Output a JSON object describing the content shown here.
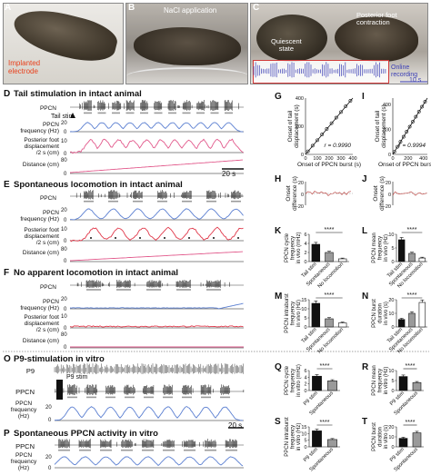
{
  "panels": {
    "A": {
      "letter": "A",
      "label": "Implanted\nelectrode"
    },
    "B": {
      "letter": "B",
      "label": "NaCl application"
    },
    "C": {
      "letter": "C",
      "label_quiescent": "Quiescent\nstate",
      "label_posterior": "Posterior foot\ncontraction",
      "label_online": "Online\nrecording",
      "label_scale": "10 s"
    },
    "D": {
      "letter": "D",
      "title": "Tail stimulation in intact animal",
      "annot": "Tail stim",
      "scale": "20 s",
      "rows": [
        "PPCN",
        "PPCN\nfrequency (Hz)",
        "Posterior foot\ndisplacement\n/2 s (cm)",
        "Distance (cm)"
      ],
      "ticks": [
        "20",
        "0",
        "10",
        "0",
        "80",
        "0"
      ]
    },
    "E": {
      "letter": "E",
      "title": "Spontaneous locomotion in intact animal",
      "rows": [
        "PPCN",
        "PPCN\nfrequency (Hz)",
        "Posterior foot\ndisplacement\n/2 s (cm)",
        "Distance (cm)"
      ],
      "ticks": [
        "20",
        "0",
        "10",
        "0",
        "80",
        "0"
      ]
    },
    "F": {
      "letter": "F",
      "title": "No apparent locomotion in intact animal",
      "rows": [
        "PPCN",
        "PPCN\nfrequency (Hz)",
        "Posterior foot\ndisplacement\n/2 s (cm)",
        "Distance (cm)"
      ],
      "ticks": [
        "20",
        "0",
        "10",
        "0",
        "80",
        "0"
      ]
    },
    "G": {
      "letter": "G",
      "xlabel": "Onset of PPCN burst (s)",
      "ylabel": "Onset of tail\ndisplacement (s)",
      "r": "r = 0.9990",
      "xticks": [
        "0",
        "100",
        "200",
        "300",
        "400"
      ],
      "yticks": [
        "0",
        "200",
        "400"
      ]
    },
    "H": {
      "letter": "H",
      "ylabel": "Onset\ndifference (s)",
      "yticks": [
        "20",
        "0",
        "-20"
      ]
    },
    "I": {
      "letter": "I",
      "xlabel": "Onset of PPCN burst (s)",
      "ylabel": "Onset of tail\ndisplacement (s)",
      "r": "r = 0.9994",
      "xticks": [
        "0",
        "200",
        "400"
      ],
      "yticks": [
        "0",
        "200",
        "400"
      ]
    },
    "J": {
      "letter": "J",
      "ylabel": "Onset\ndifference (s)",
      "yticks": [
        "20",
        "0",
        "-20"
      ]
    },
    "K": {
      "letter": "K",
      "ylabel": "PPCN cycle\nfrequency\nin vivo (mHz)",
      "yticks": [
        "0",
        "2",
        "4",
        "6"
      ],
      "stars": "****",
      "categories": [
        "Tail stim",
        "Spontaneous",
        "No locomotion"
      ]
    },
    "L": {
      "letter": "L",
      "ylabel": "PPCN mean\nfrequency\nin vivo (Hz)",
      "yticks": [
        "0",
        "5",
        "10"
      ],
      "stars": "****",
      "categories": [
        "Tail stim",
        "Spontaneous",
        "No locomotion"
      ]
    },
    "M": {
      "letter": "M",
      "ylabel": "PPCN intraburst\nfrequency\nin vivo (Hz)",
      "yticks": [
        "0",
        "5",
        "10",
        "15"
      ],
      "stars": "****",
      "categories": [
        "Tail stim",
        "Spontaneous",
        "No locomotion"
      ]
    },
    "N": {
      "letter": "N",
      "ylabel": "PPCN burst\nduration\nin vivo (s)",
      "yticks": [
        "0",
        "10",
        "20"
      ],
      "stars": "****",
      "categories": [
        "Tail stim",
        "Spontaneous",
        "No locomotion"
      ]
    },
    "O": {
      "letter": "O",
      "title": "P9-stimulation in vitro",
      "annot": "P9 stim",
      "scale": "20 s",
      "rows": [
        "P9",
        "PPCN",
        "PPCN\nfrequency\n(Hz)"
      ],
      "ticks": [
        "20",
        "0"
      ]
    },
    "P": {
      "letter": "P",
      "title": "Spontaneous PPCN activity in vitro",
      "rows": [
        "PPCN",
        "PPCN\nfrequency\n(Hz)"
      ],
      "ticks": [
        "20",
        "0"
      ]
    },
    "Q": {
      "letter": "Q",
      "ylabel": "PPCN cycle\nfrequency\nin vitro (mHz)",
      "yticks": [
        "0",
        "2",
        "4",
        "6"
      ],
      "stars": "****",
      "categories": [
        "P9 stim",
        "Spontaneous"
      ]
    },
    "R": {
      "letter": "R",
      "ylabel": "PPCN mean\nfrequency\nin vitro (Hz)",
      "yticks": [
        "0",
        "5",
        "10"
      ],
      "stars": "****",
      "categories": [
        "P9 stim",
        "Spontaneous"
      ]
    },
    "S": {
      "letter": "S",
      "ylabel": "PPCN intraburst\nfrequency\nin vitro (Hz)",
      "yticks": [
        "0",
        "5",
        "10",
        "15"
      ],
      "stars": "****",
      "categories": [
        "P9 stim",
        "Spontaneous"
      ]
    },
    "T": {
      "letter": "T",
      "ylabel": "PPCN burst\nduration\nin vitro (s)",
      "yticks": [
        "0",
        "10",
        "20"
      ],
      "stars": "****",
      "categories": [
        "P9 stim",
        "Spontaneous"
      ]
    }
  },
  "colors": {
    "trace": "#111111",
    "blue": "#5b7fd1",
    "red": "#e0384a",
    "pink": "#e25a8c",
    "gray": "#9a9a9a",
    "white": "#ffffff",
    "label_red": "#e8401c"
  },
  "chart_data": [
    {
      "panel": "K",
      "type": "bar",
      "categories": [
        "Tail stim",
        "Spontaneous",
        "No locomotion"
      ],
      "values": [
        3.8,
        2.0,
        0.6
      ],
      "ylim": [
        0,
        6
      ]
    },
    {
      "panel": "L",
      "type": "bar",
      "categories": [
        "Tail stim",
        "Spontaneous",
        "No locomotion"
      ],
      "values": [
        8.0,
        3.0,
        1.3
      ],
      "ylim": [
        0,
        10
      ]
    },
    {
      "panel": "M",
      "type": "bar",
      "categories": [
        "Tail stim",
        "Spontaneous",
        "No locomotion"
      ],
      "values": [
        13.0,
        4.5,
        2.2
      ],
      "ylim": [
        0,
        15
      ]
    },
    {
      "panel": "N",
      "type": "bar",
      "categories": [
        "Tail stim",
        "Spontaneous",
        "No locomotion"
      ],
      "values": [
        5.5,
        10.0,
        18.0
      ],
      "ylim": [
        0,
        20
      ]
    },
    {
      "panel": "Q",
      "type": "bar",
      "categories": [
        "P9 stim",
        "Spontaneous"
      ],
      "values": [
        4.3,
        2.9
      ],
      "ylim": [
        0,
        6
      ]
    },
    {
      "panel": "R",
      "type": "bar",
      "categories": [
        "P9 stim",
        "Spontaneous"
      ],
      "values": [
        7.0,
        4.0
      ],
      "ylim": [
        0,
        10
      ]
    },
    {
      "panel": "S",
      "type": "bar",
      "categories": [
        "P9 stim",
        "Spontaneous"
      ],
      "values": [
        12.0,
        5.5
      ],
      "ylim": [
        0,
        15
      ]
    },
    {
      "panel": "T",
      "type": "bar",
      "categories": [
        "P9 stim",
        "Spontaneous"
      ],
      "values": [
        8.5,
        14.0
      ],
      "ylim": [
        0,
        20
      ]
    },
    {
      "panel": "G",
      "type": "scatter",
      "x": [
        20,
        60,
        100,
        140,
        180,
        220,
        260,
        300,
        340,
        380
      ],
      "y": [
        22,
        62,
        101,
        142,
        181,
        222,
        261,
        301,
        342,
        381
      ],
      "xlim": [
        0,
        400
      ],
      "ylim": [
        0,
        400
      ]
    },
    {
      "panel": "I",
      "type": "scatter",
      "x": [
        20,
        60,
        100,
        140,
        180,
        220,
        260,
        300,
        340,
        380,
        420
      ],
      "y": [
        21,
        61,
        101,
        141,
        181,
        221,
        261,
        301,
        341,
        381,
        421
      ],
      "xlim": [
        0,
        450
      ],
      "ylim": [
        0,
        450
      ]
    }
  ]
}
